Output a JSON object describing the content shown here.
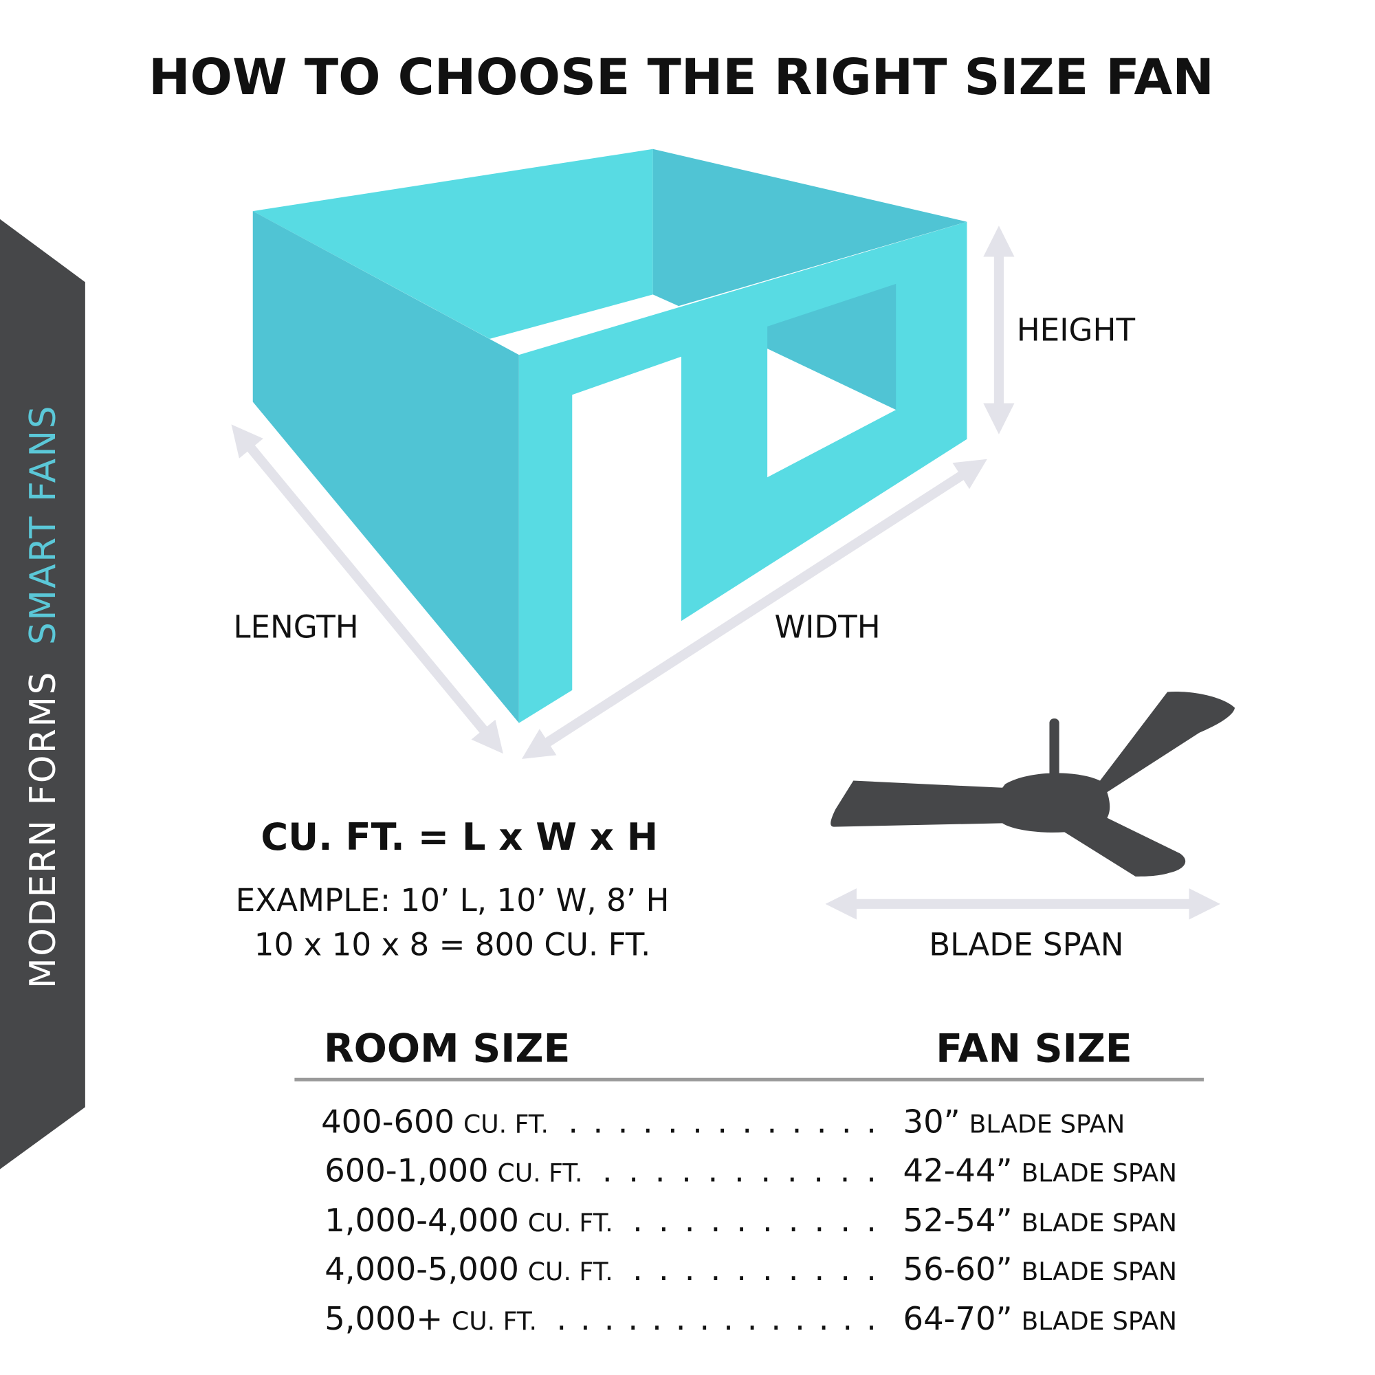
{
  "title": "HOW TO CHOOSE THE RIGHT SIZE FAN",
  "banner": {
    "brand": "MODERN FORMS",
    "product": "SMART FANS"
  },
  "diagram": {
    "length": "LENGTH",
    "width": "WIDTH",
    "height": "HEIGHT",
    "blade_span": "BLADE SPAN"
  },
  "formula": {
    "equation": "CU. FT. = L x W x H",
    "example_line1": "EXAMPLE: 10’ L, 10’ W, 8’ H",
    "example_line2": "10 x 10 x 8 = 800 CU. FT."
  },
  "table": {
    "header_room": "ROOM SIZE",
    "header_fan": "FAN SIZE",
    "rows": [
      {
        "room": "400-600",
        "room_unit": "CU. FT.",
        "dots": ". . . . . . . . . . . . .",
        "fan": "30”",
        "fan_unit": "BLADE SPAN"
      },
      {
        "room": "600-1,000",
        "room_unit": "CU. FT.",
        "dots": ". . . . . . . . . . .",
        "fan": "42-44”",
        "fan_unit": "BLADE SPAN"
      },
      {
        "room": "1,000-4,000",
        "room_unit": "CU. FT.",
        "dots": ". . . . . . . . . .",
        "fan": "52-54”",
        "fan_unit": "BLADE SPAN"
      },
      {
        "room": "4,000-5,000",
        "room_unit": "CU. FT.",
        "dots": ". . . . . . . . . .",
        "fan": "56-60”",
        "fan_unit": "BLADE SPAN"
      },
      {
        "room": "5,000+",
        "room_unit": "CU. FT.",
        "dots": ". . . . . . . . . . . . . .",
        "fan": "64-70”",
        "fan_unit": "BLADE SPAN"
      }
    ]
  },
  "colors": {
    "cyan_light": "#58dbe3",
    "cyan_dark": "#50c4d4",
    "charcoal": "#464749",
    "arrow": "#e3e3ea",
    "accent_text": "#5bc8d8",
    "rule": "#9a9a9a"
  }
}
